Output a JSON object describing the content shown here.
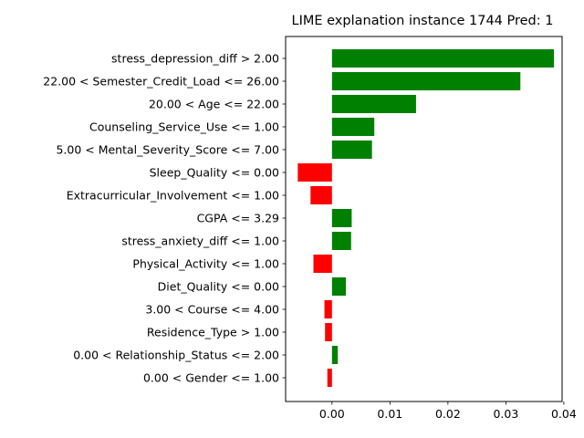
{
  "chart_data": {
    "type": "bar",
    "orientation": "horizontal",
    "title": "LIME explanation instance 1744 Pred: 1",
    "xlabel": "",
    "ylabel": "",
    "xlim": [
      -0.008,
      0.0397
    ],
    "xticks": [
      0.0,
      0.01,
      0.02,
      0.03,
      0.04
    ],
    "xtick_labels": [
      "0.00",
      "0.01",
      "0.02",
      "0.03",
      "0.04"
    ],
    "grid": false,
    "colors": {
      "positive": "#008000",
      "negative": "#ff0000"
    },
    "categories": [
      "stress_depression_diff > 2.00",
      "22.00 < Semester_Credit_Load <= 26.00",
      "20.00 < Age <= 22.00",
      "Counseling_Service_Use <= 1.00",
      "5.00 < Mental_Severity_Score <= 7.00",
      "Sleep_Quality <= 0.00",
      "Extracurricular_Involvement <= 1.00",
      "CGPA <= 3.29",
      "stress_anxiety_diff <= 1.00",
      "Physical_Activity <= 1.00",
      "Diet_Quality <= 0.00",
      "3.00 < Course <= 4.00",
      "Residence_Type > 1.00",
      "0.00 < Relationship_Status <= 2.00",
      "0.00 < Gender <= 1.00"
    ],
    "values": [
      0.0383,
      0.0325,
      0.0145,
      0.0073,
      0.0069,
      -0.0059,
      -0.0037,
      0.0034,
      0.0033,
      -0.0032,
      0.0024,
      -0.0013,
      -0.0012,
      0.001,
      -0.0008
    ]
  }
}
